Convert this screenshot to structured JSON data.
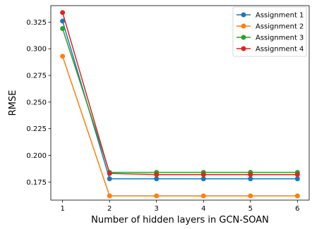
{
  "chart_data": {
    "type": "line",
    "title": "",
    "xlabel": "Number of hidden layers in GCN-SOAN",
    "ylabel": "RMSE",
    "x": [
      1,
      2,
      3,
      4,
      5,
      6
    ],
    "xlim": [
      0.75,
      6.25
    ],
    "ylim": [
      0.158,
      0.3405
    ],
    "xticks": [
      1,
      2,
      3,
      4,
      5,
      6
    ],
    "yticks": [
      0.175,
      0.2,
      0.225,
      0.25,
      0.275,
      0.3,
      0.325
    ],
    "ytick_labels": [
      "0.175",
      "0.200",
      "0.225",
      "0.250",
      "0.275",
      "0.300",
      "0.325"
    ],
    "grid": false,
    "legend_position": "top-right",
    "series": [
      {
        "name": "Assignment 1",
        "color": "#1f77b4",
        "values": [
          0.326,
          0.178,
          0.178,
          0.178,
          0.178,
          0.178
        ]
      },
      {
        "name": "Assignment 2",
        "color": "#ff7f0e",
        "values": [
          0.293,
          0.162,
          0.162,
          0.162,
          0.162,
          0.162
        ]
      },
      {
        "name": "Assignment 3",
        "color": "#2ca02c",
        "values": [
          0.319,
          0.184,
          0.184,
          0.184,
          0.184,
          0.184
        ]
      },
      {
        "name": "Assignment 4",
        "color": "#d62728",
        "values": [
          0.334,
          0.183,
          0.182,
          0.182,
          0.182,
          0.182
        ]
      }
    ]
  }
}
